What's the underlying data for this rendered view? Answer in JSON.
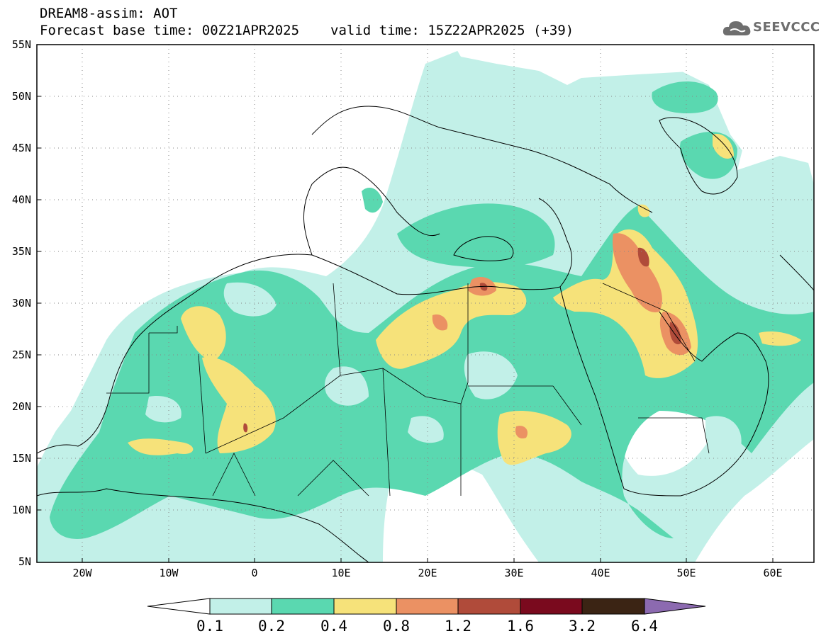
{
  "header": {
    "title": "DREAM8-assim: AOT",
    "base_time": "Forecast base time: 00Z21APR2025",
    "valid_time": "valid time: 15Z22APR2025 (+39)",
    "logo_text": "SEEVCCC",
    "logo_icon": "cloud-icon"
  },
  "map": {
    "lat_labels": [
      "55N",
      "50N",
      "45N",
      "40N",
      "35N",
      "30N",
      "25N",
      "20N",
      "15N",
      "10N",
      "5N"
    ],
    "lon_labels": [
      "20W",
      "10W",
      "0",
      "10E",
      "20E",
      "30E",
      "40E",
      "50E",
      "60E"
    ],
    "grid": "dotted"
  },
  "colorbar": {
    "labels": [
      "0.1",
      "0.2",
      "0.4",
      "0.8",
      "1.2",
      "1.6",
      "3.2",
      "6.4"
    ],
    "colors": [
      "#ffffff",
      "#c2f0e8",
      "#5ad8b0",
      "#f6e27a",
      "#eb9163",
      "#b04b3a",
      "#7a0a1e",
      "#3b2414",
      "#8c6ab0"
    ]
  }
}
